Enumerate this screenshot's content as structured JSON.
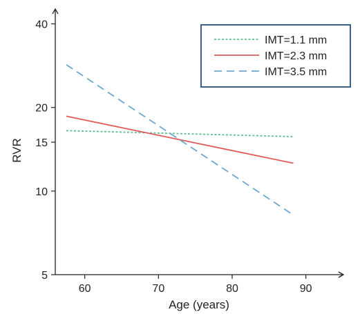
{
  "chart_data": {
    "type": "line",
    "title": "",
    "xlabel": "Age (years)",
    "ylabel": "RVR",
    "xlim": [
      56,
      95
    ],
    "ylim": [
      5,
      45
    ],
    "y_scale": "log",
    "x_ticks": [
      60,
      70,
      80,
      90
    ],
    "x_tick_labels": [
      "60",
      "70",
      "80",
      "90"
    ],
    "y_ticks": [
      5,
      10,
      15,
      20,
      40
    ],
    "y_tick_labels": [
      "5",
      "10",
      "15",
      "20",
      "40"
    ],
    "legend_position": "top-right",
    "grid": false,
    "series": [
      {
        "name": "IMT=1.1 mm",
        "color": "#5dbf8f",
        "style": "dotted",
        "x": [
          57.5,
          88.3
        ],
        "y": [
          16.5,
          15.7
        ]
      },
      {
        "name": "IMT=2.3 mm",
        "color": "#e05a5a",
        "style": "solid",
        "x": [
          57.5,
          88.3
        ],
        "y": [
          18.6,
          12.6
        ]
      },
      {
        "name": "IMT=3.5 mm",
        "color": "#6aa7d0",
        "style": "dashed",
        "x": [
          57.5,
          88.3
        ],
        "y": [
          28.5,
          8.2
        ]
      }
    ]
  }
}
